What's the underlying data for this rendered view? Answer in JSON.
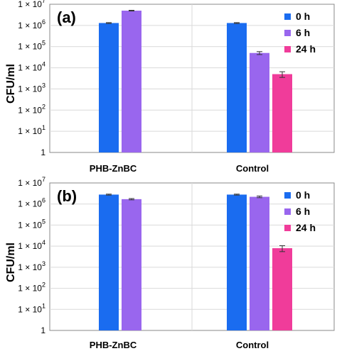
{
  "chart_data": [
    {
      "type": "bar",
      "panel_label": "(a)",
      "ylabel": "CFU/ml",
      "yscale": "log",
      "ylim": [
        1,
        10000000
      ],
      "ytick_labels": [
        "1",
        "1 × 10",
        "1 × 10",
        "1 × 10",
        "1 × 10",
        "1 × 10",
        "1 × 10",
        "1 × 10"
      ],
      "ytick_exponents": [
        "",
        "1",
        "2",
        "3",
        "4",
        "5",
        "6",
        "7"
      ],
      "categories": [
        "PHB-ZnBC",
        "Control"
      ],
      "series": [
        {
          "name": "0 h",
          "color": "#1a6cf0",
          "values": [
            1300000,
            1300000
          ],
          "errors": [
            60000,
            60000
          ]
        },
        {
          "name": "6 h",
          "color": "#9966ee",
          "values": [
            5000000,
            50000
          ],
          "errors": [
            200000,
            8000
          ]
        },
        {
          "name": "24 h",
          "color": "#f03c9a",
          "values": [
            null,
            5000
          ],
          "errors": [
            null,
            1500
          ]
        }
      ],
      "legend": "top-right",
      "grid": true
    },
    {
      "type": "bar",
      "panel_label": "(b)",
      "ylabel": "CFU/ml",
      "yscale": "log",
      "ylim": [
        1,
        10000000
      ],
      "ytick_labels": [
        "1",
        "1 × 10",
        "1 × 10",
        "1 × 10",
        "1 × 10",
        "1 × 10",
        "1 × 10",
        "1 × 10"
      ],
      "ytick_exponents": [
        "",
        "1",
        "2",
        "3",
        "4",
        "5",
        "6",
        "7"
      ],
      "categories": [
        "PHB-ZnBC",
        "Control"
      ],
      "series": [
        {
          "name": "0 h",
          "color": "#1a6cf0",
          "values": [
            2800000,
            2800000
          ],
          "errors": [
            150000,
            150000
          ]
        },
        {
          "name": "6 h",
          "color": "#9966ee",
          "values": [
            1700000,
            2200000
          ],
          "errors": [
            120000,
            200000
          ]
        },
        {
          "name": "24 h",
          "color": "#f03c9a",
          "values": [
            null,
            8000
          ],
          "errors": [
            null,
            2500
          ]
        }
      ],
      "legend": "top-right",
      "grid": true
    }
  ]
}
